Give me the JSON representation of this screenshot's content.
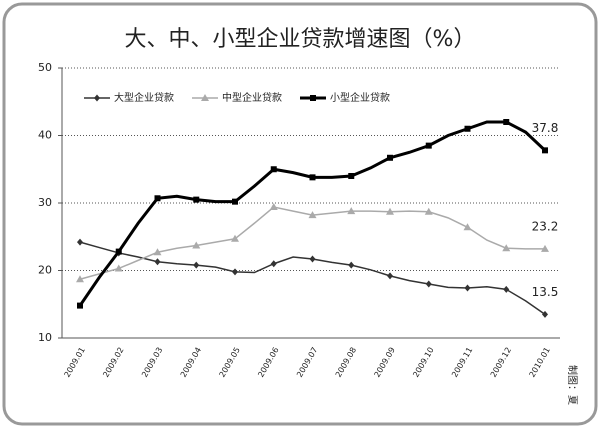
{
  "chart_data": {
    "type": "line",
    "title": "大、中、小型企业贷款增速图（%）",
    "note": "制图：夏",
    "categories": [
      "2009.01",
      null,
      "2009.02",
      null,
      "2009.03",
      null,
      "2009.04",
      null,
      "2009.05",
      null,
      "2009.06",
      null,
      "2009.07",
      null,
      "2009.08",
      null,
      "2009.09",
      null,
      "2009.10",
      null,
      "2009.11",
      null,
      "2009.12",
      null,
      "2010.01"
    ],
    "series": [
      {
        "name": "大型企业贷款",
        "color": "#333333",
        "marker": "diamond",
        "values": [
          24.2,
          23.4,
          22.6,
          22.0,
          21.3,
          21.0,
          20.8,
          20.5,
          19.8,
          19.7,
          21.0,
          22.0,
          21.7,
          21.2,
          20.8,
          20.1,
          19.2,
          18.5,
          18.0,
          17.5,
          17.4,
          17.6,
          17.2,
          15.5,
          13.5
        ]
      },
      {
        "name": "中型企业贷款",
        "color": "#aaaaaa",
        "marker": "triangle",
        "values": [
          18.7,
          19.5,
          20.3,
          21.5,
          22.7,
          23.3,
          23.7,
          24.2,
          24.7,
          27.0,
          29.4,
          28.8,
          28.2,
          28.5,
          28.8,
          28.8,
          28.7,
          28.8,
          28.7,
          27.8,
          26.4,
          24.5,
          23.3,
          23.2,
          23.2
        ]
      },
      {
        "name": "小型企业贷款",
        "color": "#000000",
        "marker": "square",
        "values": [
          14.8,
          19.0,
          22.8,
          27.0,
          30.7,
          31.0,
          30.5,
          30.2,
          30.2,
          32.5,
          35.0,
          34.5,
          33.8,
          33.8,
          34.0,
          35.2,
          36.7,
          37.5,
          38.5,
          40.0,
          41.0,
          42.0,
          42.0,
          40.5,
          37.8
        ]
      }
    ],
    "ylim": [
      10,
      50
    ],
    "yticks": [
      10,
      20,
      30,
      40,
      50
    ],
    "grid": true,
    "legend": "top-left"
  }
}
